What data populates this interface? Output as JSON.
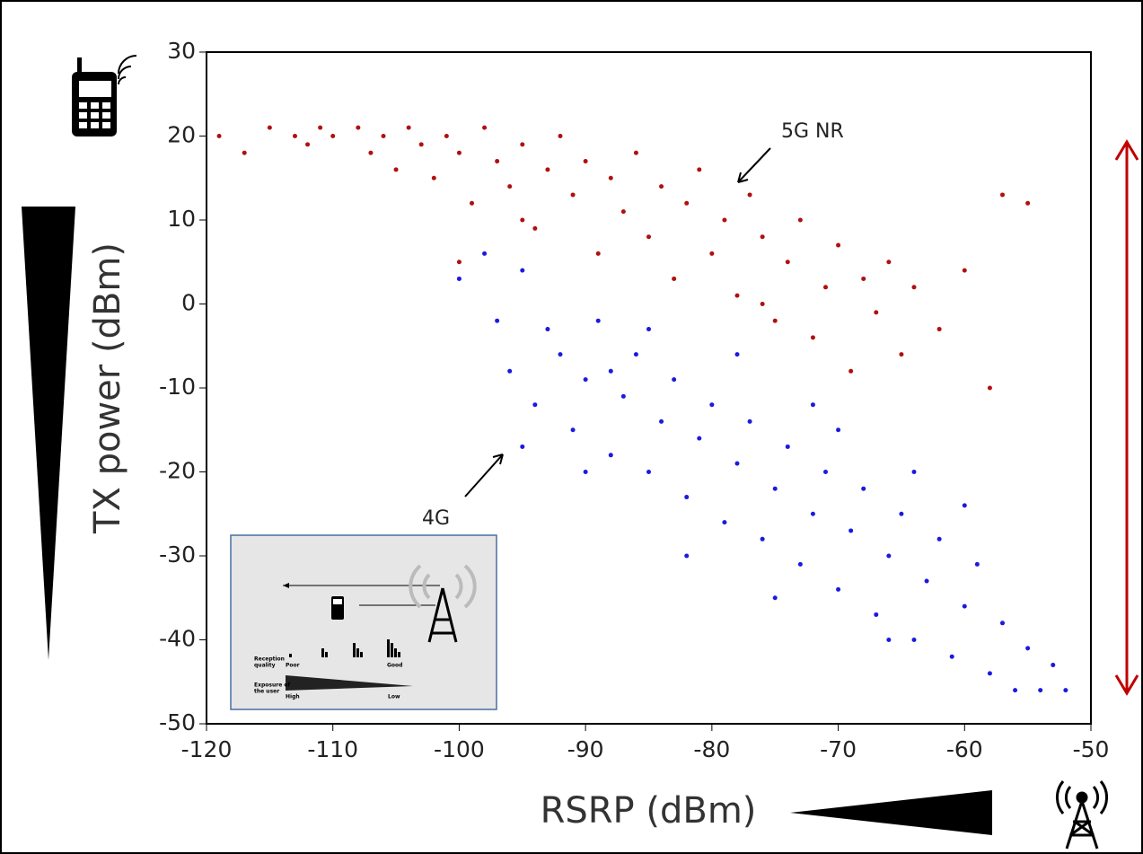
{
  "chart_data": {
    "type": "scatter",
    "xlabel": "RSRP (dBm)",
    "ylabel": "TX power (dBm)",
    "xlim": [
      -120,
      -50
    ],
    "ylim": [
      -50,
      30
    ],
    "xticks": [
      -120,
      -110,
      -100,
      -90,
      -80,
      -70,
      -60,
      -50
    ],
    "yticks": [
      -50,
      -40,
      -30,
      -20,
      -10,
      0,
      10,
      20,
      30
    ],
    "grid": false,
    "series": [
      {
        "name": "5G NR",
        "color": "#b01010",
        "x": [
          -119,
          -117,
          -115,
          -113,
          -112,
          -111,
          -110,
          -108,
          -107,
          -106,
          -105,
          -104,
          -103,
          -102,
          -101,
          -100,
          -99,
          -98,
          -97,
          -96,
          -95,
          -94,
          -93,
          -92,
          -91,
          -90,
          -89,
          -88,
          -87,
          -86,
          -85,
          -84,
          -83,
          -82,
          -81,
          -80,
          -79,
          -78,
          -77,
          -76,
          -75,
          -74,
          -73,
          -72,
          -71,
          -70,
          -69,
          -68,
          -67,
          -66,
          -65,
          -64,
          -62,
          -60,
          -58,
          -57,
          -55,
          -76,
          -95,
          -100
        ],
        "y": [
          20,
          18,
          21,
          20,
          19,
          21,
          20,
          21,
          18,
          20,
          16,
          21,
          19,
          15,
          20,
          18,
          12,
          21,
          17,
          14,
          19,
          9,
          16,
          20,
          13,
          17,
          6,
          15,
          11,
          18,
          8,
          14,
          3,
          12,
          16,
          6,
          10,
          1,
          13,
          8,
          -2,
          5,
          10,
          -4,
          2,
          7,
          -8,
          3,
          -1,
          5,
          -6,
          2,
          -3,
          4,
          -10,
          13,
          12,
          0,
          10,
          5
        ]
      },
      {
        "name": "4G",
        "color": "#1a1ae0",
        "x": [
          -100,
          -98,
          -97,
          -96,
          -95,
          -94,
          -93,
          -92,
          -91,
          -90,
          -89,
          -88,
          -87,
          -86,
          -85,
          -84,
          -83,
          -82,
          -81,
          -80,
          -79,
          -78,
          -77,
          -76,
          -75,
          -74,
          -73,
          -72,
          -71,
          -70,
          -69,
          -68,
          -67,
          -66,
          -65,
          -64,
          -63,
          -62,
          -61,
          -60,
          -59,
          -58,
          -57,
          -56,
          -55,
          -54,
          -53,
          -52,
          -95,
          -78,
          -85,
          -90,
          -70,
          -82,
          -66,
          -60,
          -75,
          -88,
          -72,
          -64
        ],
        "y": [
          3,
          6,
          -2,
          -8,
          4,
          -12,
          -3,
          -6,
          -15,
          -9,
          -2,
          -18,
          -11,
          -6,
          -20,
          -14,
          -9,
          -23,
          -16,
          -12,
          -26,
          -19,
          -14,
          -28,
          -22,
          -17,
          -31,
          -25,
          -20,
          -34,
          -27,
          -22,
          -37,
          -30,
          -25,
          -40,
          -33,
          -28,
          -42,
          -36,
          -31,
          -44,
          -38,
          -46,
          -41,
          -46,
          -43,
          -46,
          -17,
          -6,
          -3,
          -20,
          -15,
          -30,
          -40,
          -24,
          -35,
          -8,
          -12,
          -20
        ]
      }
    ]
  },
  "inset": {
    "reception_label": [
      "Reception",
      "quality"
    ],
    "poor": "Poor",
    "good": "Good",
    "exposure_label": [
      "Exposure of",
      "the user"
    ],
    "high": "High",
    "low": "Low"
  }
}
